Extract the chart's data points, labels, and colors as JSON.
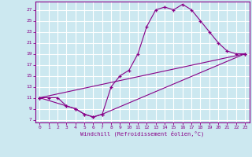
{
  "xlabel": "Windchill (Refroidissement éolien,°C)",
  "bg_color": "#cce8f0",
  "line_color": "#880088",
  "grid_color": "#ffffff",
  "xlim": [
    -0.5,
    23.5
  ],
  "ylim": [
    6.5,
    28.5
  ],
  "xticks": [
    0,
    1,
    2,
    3,
    4,
    5,
    6,
    7,
    8,
    9,
    10,
    11,
    12,
    13,
    14,
    15,
    16,
    17,
    18,
    19,
    20,
    21,
    22,
    23
  ],
  "yticks": [
    7,
    9,
    11,
    13,
    15,
    17,
    19,
    21,
    23,
    25,
    27
  ],
  "line1_x": [
    0,
    1,
    2,
    3,
    4,
    5,
    6,
    7,
    8,
    9,
    10,
    11,
    12,
    13,
    14,
    15,
    16,
    17,
    18,
    19,
    20,
    21,
    22,
    23
  ],
  "line1_y": [
    11,
    11,
    11,
    9.5,
    9,
    8,
    7.5,
    8,
    13,
    15,
    16,
    19,
    24,
    27,
    27.5,
    27,
    28,
    27,
    25,
    23,
    21,
    19.5,
    19,
    19
  ],
  "line2_x": [
    0,
    3,
    4,
    5,
    6,
    7,
    23
  ],
  "line2_y": [
    11,
    9.5,
    9,
    8,
    7.5,
    8,
    19
  ],
  "line3_x": [
    0,
    23
  ],
  "line3_y": [
    11,
    19
  ]
}
